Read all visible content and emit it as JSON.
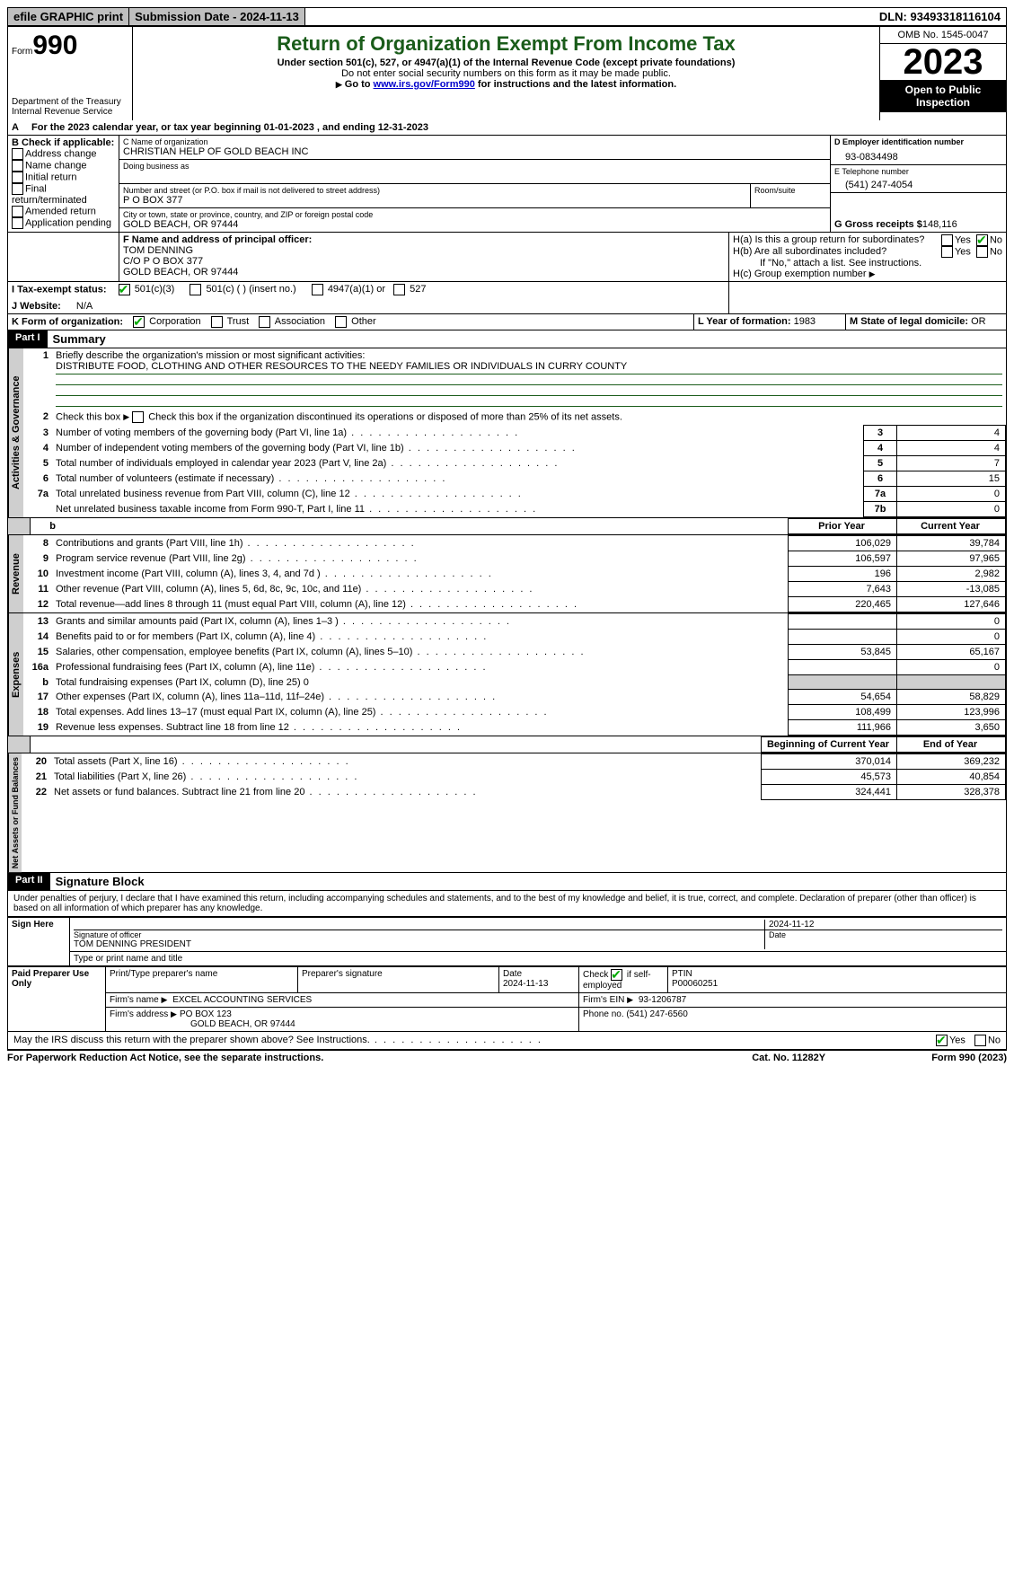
{
  "topbar": {
    "efile": "efile GRAPHIC print",
    "submission": "Submission Date - 2024-11-13",
    "dln": "DLN: 93493318116104"
  },
  "header": {
    "form_prefix": "Form",
    "form_no": "990",
    "dept": "Department of the Treasury Internal Revenue Service",
    "title": "Return of Organization Exempt From Income Tax",
    "sub1": "Under section 501(c), 527, or 4947(a)(1) of the Internal Revenue Code (except private foundations)",
    "sub2": "Do not enter social security numbers on this form as it may be made public.",
    "sub3_pre": "Go to ",
    "sub3_link": "www.irs.gov/Form990",
    "sub3_post": " for instructions and the latest information.",
    "omb": "OMB No. 1545-0047",
    "year": "2023",
    "inspection": "Open to Public Inspection"
  },
  "periodA": "For the 2023 calendar year, or tax year beginning 01-01-2023     , and ending 12-31-2023",
  "boxB": {
    "title": "B Check if applicable:",
    "items": [
      "Address change",
      "Name change",
      "Initial return",
      "Final return/terminated",
      "Amended return",
      "Application pending"
    ]
  },
  "boxC": {
    "name_label": "C Name of organization",
    "name": "CHRISTIAN HELP OF GOLD BEACH INC",
    "dba_label": "Doing business as",
    "street_label": "Number and street (or P.O. box if mail is not delivered to street address)",
    "room_label": "Room/suite",
    "street": "P O BOX 377",
    "city_label": "City or town, state or province, country, and ZIP or foreign postal code",
    "city": "GOLD BEACH, OR  97444"
  },
  "boxD": {
    "label": "D Employer identification number",
    "value": "93-0834498"
  },
  "boxE": {
    "label": "E Telephone number",
    "value": "(541) 247-4054"
  },
  "boxG": {
    "label": "G Gross receipts $",
    "value": "148,116"
  },
  "boxF": {
    "label": "F  Name and address of principal officer:",
    "lines": [
      "TOM DENNING",
      "C/O P O BOX 377",
      "GOLD BEACH, OR  97444"
    ]
  },
  "boxH": {
    "a": "H(a)  Is this a group return for subordinates?",
    "b": "H(b)  Are all subordinates included?",
    "note": "If \"No,\" attach a list. See instructions.",
    "c": "H(c)  Group exemption number",
    "yes": "Yes",
    "no": "No"
  },
  "boxI": {
    "label": "I    Tax-exempt status:",
    "opts": [
      "501(c)(3)",
      "501(c) (  ) (insert no.)",
      "4947(a)(1) or",
      "527"
    ]
  },
  "boxJ": {
    "label": "J    Website:",
    "value": "N/A"
  },
  "boxK": {
    "label": "K Form of organization:",
    "opts": [
      "Corporation",
      "Trust",
      "Association",
      "Other"
    ]
  },
  "boxL": {
    "label": "L Year of formation:",
    "value": "1983"
  },
  "boxM": {
    "label": "M State of legal domicile:",
    "value": "OR"
  },
  "part1": {
    "tag": "Part I",
    "title": "Summary"
  },
  "mission_label": "Briefly describe the organization's mission or most significant activities:",
  "mission": "DISTRIBUTE FOOD, CLOTHING AND OTHER RESOURCES TO THE NEEDY FAMILIES OR INDIVIDUALS IN CURRY COUNTY",
  "line2": "Check this box        if the organization discontinued its operations or disposed of more than 25% of its net assets.",
  "gov_lines": [
    {
      "n": "3",
      "t": "Number of voting members of the governing body (Part VI, line 1a)",
      "k": "3",
      "v": "4"
    },
    {
      "n": "4",
      "t": "Number of independent voting members of the governing body (Part VI, line 1b)",
      "k": "4",
      "v": "4"
    },
    {
      "n": "5",
      "t": "Total number of individuals employed in calendar year 2023 (Part V, line 2a)",
      "k": "5",
      "v": "7"
    },
    {
      "n": "6",
      "t": "Total number of volunteers (estimate if necessary)",
      "k": "6",
      "v": "15"
    },
    {
      "n": "7a",
      "t": "Total unrelated business revenue from Part VIII, column (C), line 12",
      "k": "7a",
      "v": "0"
    },
    {
      "n": "",
      "t": "Net unrelated business taxable income from Form 990-T, Part I, line 11",
      "k": "7b",
      "v": "0"
    }
  ],
  "col_headers": {
    "prior": "Prior Year",
    "current": "Current Year",
    "begin": "Beginning of Current Year",
    "end": "End of Year"
  },
  "revenue": [
    {
      "n": "8",
      "t": "Contributions and grants (Part VIII, line 1h)",
      "p": "106,029",
      "c": "39,784"
    },
    {
      "n": "9",
      "t": "Program service revenue (Part VIII, line 2g)",
      "p": "106,597",
      "c": "97,965"
    },
    {
      "n": "10",
      "t": "Investment income (Part VIII, column (A), lines 3, 4, and 7d )",
      "p": "196",
      "c": "2,982"
    },
    {
      "n": "11",
      "t": "Other revenue (Part VIII, column (A), lines 5, 6d, 8c, 9c, 10c, and 11e)",
      "p": "7,643",
      "c": "-13,085"
    },
    {
      "n": "12",
      "t": "Total revenue—add lines 8 through 11 (must equal Part VIII, column (A), line 12)",
      "p": "220,465",
      "c": "127,646"
    }
  ],
  "expenses": [
    {
      "n": "13",
      "t": "Grants and similar amounts paid (Part IX, column (A), lines 1–3 )",
      "p": "",
      "c": "0"
    },
    {
      "n": "14",
      "t": "Benefits paid to or for members (Part IX, column (A), line 4)",
      "p": "",
      "c": "0"
    },
    {
      "n": "15",
      "t": "Salaries, other compensation, employee benefits (Part IX, column (A), lines 5–10)",
      "p": "53,845",
      "c": "65,167"
    },
    {
      "n": "16a",
      "t": "Professional fundraising fees (Part IX, column (A), line 11e)",
      "p": "",
      "c": "0"
    },
    {
      "n": "b",
      "t": "Total fundraising expenses (Part IX, column (D), line 25) 0",
      "grey": true
    },
    {
      "n": "17",
      "t": "Other expenses (Part IX, column (A), lines 11a–11d, 11f–24e)",
      "p": "54,654",
      "c": "58,829"
    },
    {
      "n": "18",
      "t": "Total expenses. Add lines 13–17 (must equal Part IX, column (A), line 25)",
      "p": "108,499",
      "c": "123,996"
    },
    {
      "n": "19",
      "t": "Revenue less expenses. Subtract line 18 from line 12",
      "p": "111,966",
      "c": "3,650"
    }
  ],
  "netassets": [
    {
      "n": "20",
      "t": "Total assets (Part X, line 16)",
      "p": "370,014",
      "c": "369,232"
    },
    {
      "n": "21",
      "t": "Total liabilities (Part X, line 26)",
      "p": "45,573",
      "c": "40,854"
    },
    {
      "n": "22",
      "t": "Net assets or fund balances. Subtract line 21 from line 20",
      "p": "324,441",
      "c": "328,378"
    }
  ],
  "part2": {
    "tag": "Part II",
    "title": "Signature Block"
  },
  "perjury": "Under penalties of perjury, I declare that I have examined this return, including accompanying schedules and statements, and to the best of my knowledge and belief, it is true, correct, and complete. Declaration of preparer (other than officer) is based on all information of which preparer has any knowledge.",
  "sign": {
    "here": "Sign Here",
    "sig_label": "Signature of officer",
    "name": "TOM DENNING PRESIDENT",
    "name_label": "Type or print name and title",
    "date_label": "Date",
    "date": "2024-11-12"
  },
  "paid": {
    "here": "Paid Preparer Use Only",
    "h1": "Print/Type preparer's name",
    "h2": "Preparer's signature",
    "h3": "Date",
    "date": "2024-11-13",
    "h4_pre": "Check",
    "h4_post": "if self-employed",
    "h5": "PTIN",
    "ptin": "P00060251",
    "firm_label": "Firm's name",
    "firm": "EXCEL ACCOUNTING SERVICES",
    "ein_label": "Firm's EIN",
    "ein": "93-1206787",
    "addr_label": "Firm's address",
    "addr1": "PO BOX 123",
    "addr2": "GOLD BEACH, OR  97444",
    "phone_label": "Phone no.",
    "phone": "(541) 247-6560"
  },
  "discuss": "May the IRS discuss this return with the preparer shown above? See Instructions.",
  "footer": {
    "left": "For Paperwork Reduction Act Notice, see the separate instructions.",
    "mid": "Cat. No. 11282Y",
    "right": "Form 990 (2023)"
  },
  "sidebars": {
    "gov": "Activities & Governance",
    "rev": "Revenue",
    "exp": "Expenses",
    "net": "Net Assets or Fund Balances"
  }
}
